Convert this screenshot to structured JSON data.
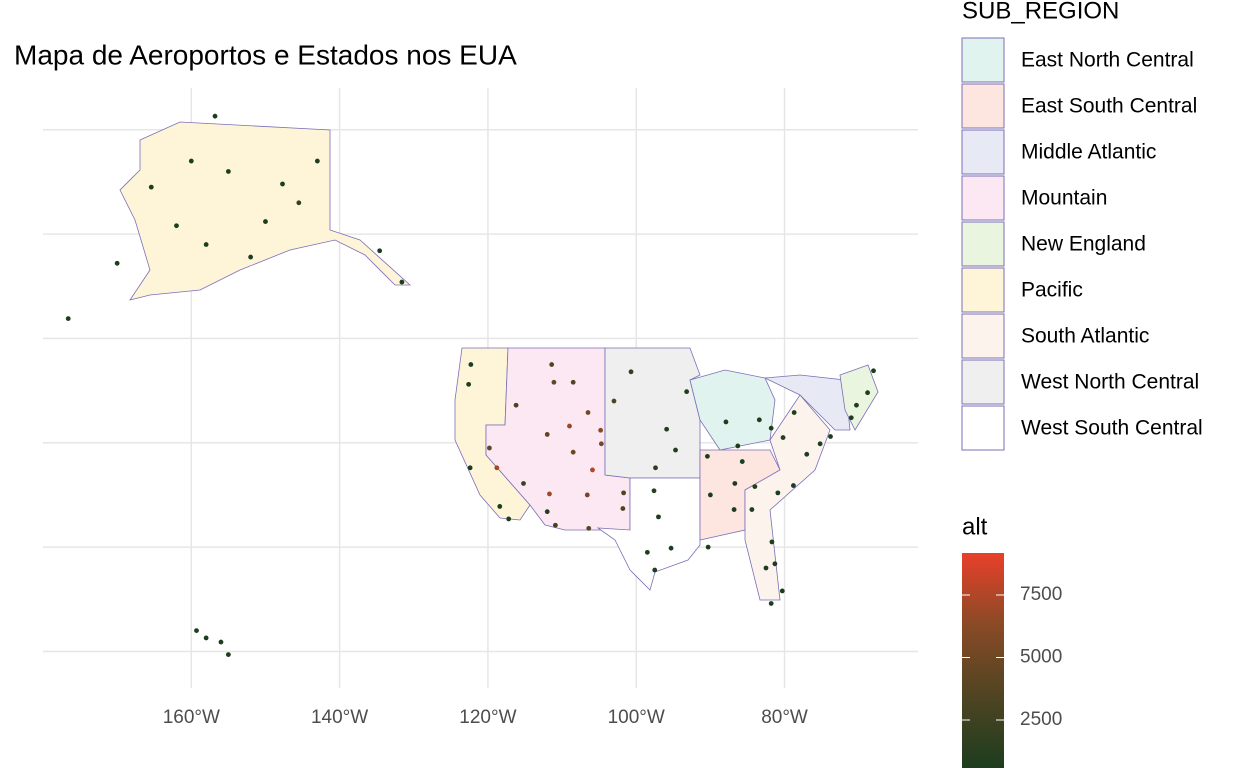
{
  "chart_data": {
    "type": "map",
    "title": "Mapa de Aeroportos e Estados nos EUA",
    "xlim": [
      -180,
      -62
    ],
    "ylim": [
      16.5,
      74
    ],
    "xticks": [
      {
        "value": -160,
        "label": "160°W"
      },
      {
        "value": -140,
        "label": "140°W"
      },
      {
        "value": -120,
        "label": "120°W"
      },
      {
        "value": -100,
        "label": "100°W"
      },
      {
        "value": -80,
        "label": "80°W"
      }
    ],
    "yticks": [
      20,
      30,
      40,
      50,
      60,
      70
    ],
    "grid": true,
    "legend": {
      "title": "SUB_REGION",
      "items": [
        {
          "name": "East North Central",
          "color": "#e0f3ee"
        },
        {
          "name": "East South Central",
          "color": "#fde6df"
        },
        {
          "name": "Middle Atlantic",
          "color": "#e7eaf4"
        },
        {
          "name": "Mountain",
          "color": "#fbe8f3"
        },
        {
          "name": "New England",
          "color": "#eaf5df"
        },
        {
          "name": "Pacific",
          "color": "#fef5d9"
        },
        {
          "name": "South Atlantic",
          "color": "#fbf3ec"
        },
        {
          "name": "West North Central",
          "color": "#efefef"
        },
        {
          "name": "West South Central",
          "color": "#ffffff"
        }
      ],
      "border": "#7b6fb8"
    },
    "colorbar": {
      "title": "alt",
      "lim": [
        580,
        9180
      ],
      "ticks": [
        2500,
        5000,
        7500
      ],
      "colors": [
        "#1c3d1e",
        "#4f4422",
        "#8a4a26",
        "#e8402a"
      ]
    },
    "points": {
      "lon": [
        -150,
        -147.7,
        -165.4,
        -156.8,
        -134.6,
        -162,
        -152,
        -145.5,
        -170,
        -176.6,
        -158,
        -155,
        -143,
        -160,
        -131.6,
        -158,
        -156,
        -155,
        -159.3,
        -122.3,
        -122.6,
        -122.4,
        -118.4,
        -117.2,
        -119.8,
        -115.2,
        -112,
        -112,
        -116.2,
        -104.7,
        -106.6,
        -104.8,
        -118.8,
        -109,
        -105.9,
        -111.7,
        -111.4,
        -108.5,
        -111.1,
        -106.5,
        -108.5,
        -106.4,
        -110.9,
        -103,
        -100.7,
        -95.9,
        -97.4,
        -93.2,
        -94.7,
        -90.4,
        -87.9,
        -83.4,
        -81.8,
        -86.3,
        -97,
        -95.3,
        -97.6,
        -101.7,
        -90.3,
        -90,
        -86.7,
        -84.4,
        -80.9,
        -80.3,
        -81.3,
        -82.5,
        -81.8,
        -81.7,
        -77,
        -75.2,
        -73.8,
        -71,
        -70.3,
        -68.8,
        -68,
        -80.2,
        -78.7,
        -86.8,
        -84,
        -85.7,
        -78.8,
        -98.5,
        -97.5,
        -101.8
      ],
      "lat": [
        61.2,
        64.8,
        64.5,
        71.3,
        58.4,
        60.8,
        57.8,
        63,
        57.2,
        51.9,
        59,
        66,
        67,
        67,
        55.4,
        21.3,
        20.9,
        19.7,
        22,
        47.5,
        45.6,
        37.6,
        33.9,
        32.7,
        39.5,
        36.1,
        33.4,
        40.8,
        43.6,
        39.9,
        35,
        41.2,
        37.6,
        41.6,
        37.4,
        35.1,
        47.5,
        45.8,
        45.8,
        42.9,
        39.1,
        31.8,
        32.1,
        44,
        46.8,
        41.3,
        37.6,
        44.9,
        39.3,
        38.7,
        42,
        42.2,
        41.4,
        39.7,
        32.9,
        29.9,
        35.4,
        35.2,
        30,
        35,
        36.1,
        33.6,
        35.2,
        25.8,
        28.4,
        28,
        24.6,
        30.5,
        38.9,
        39.9,
        40.6,
        42.4,
        43.6,
        44.8,
        46.9,
        40.5,
        42.9,
        33.6,
        35.8,
        38.2,
        35.9,
        29.5,
        27.8,
        33.7
      ],
      "alt": [
        150,
        430,
        30,
        40,
        20,
        100,
        50,
        2000,
        30,
        20,
        80,
        300,
        500,
        100,
        90,
        10,
        50,
        30,
        100,
        400,
        30,
        10,
        120,
        20,
        4400,
        2200,
        1100,
        4200,
        2900,
        5400,
        5300,
        6100,
        7100,
        6700,
        7500,
        7000,
        3600,
        3600,
        4500,
        5300,
        4800,
        3900,
        2600,
        3200,
        1700,
        980,
        1300,
        840,
        1000,
        600,
        670,
        640,
        790,
        800,
        600,
        100,
        1300,
        3600,
        5,
        340,
        600,
        1000,
        750,
        10,
        100,
        20,
        5,
        30,
        15,
        40,
        10,
        20,
        80,
        190,
        620,
        1200,
        720,
        650,
        980,
        500,
        430,
        800,
        40,
        3300
      ]
    }
  }
}
